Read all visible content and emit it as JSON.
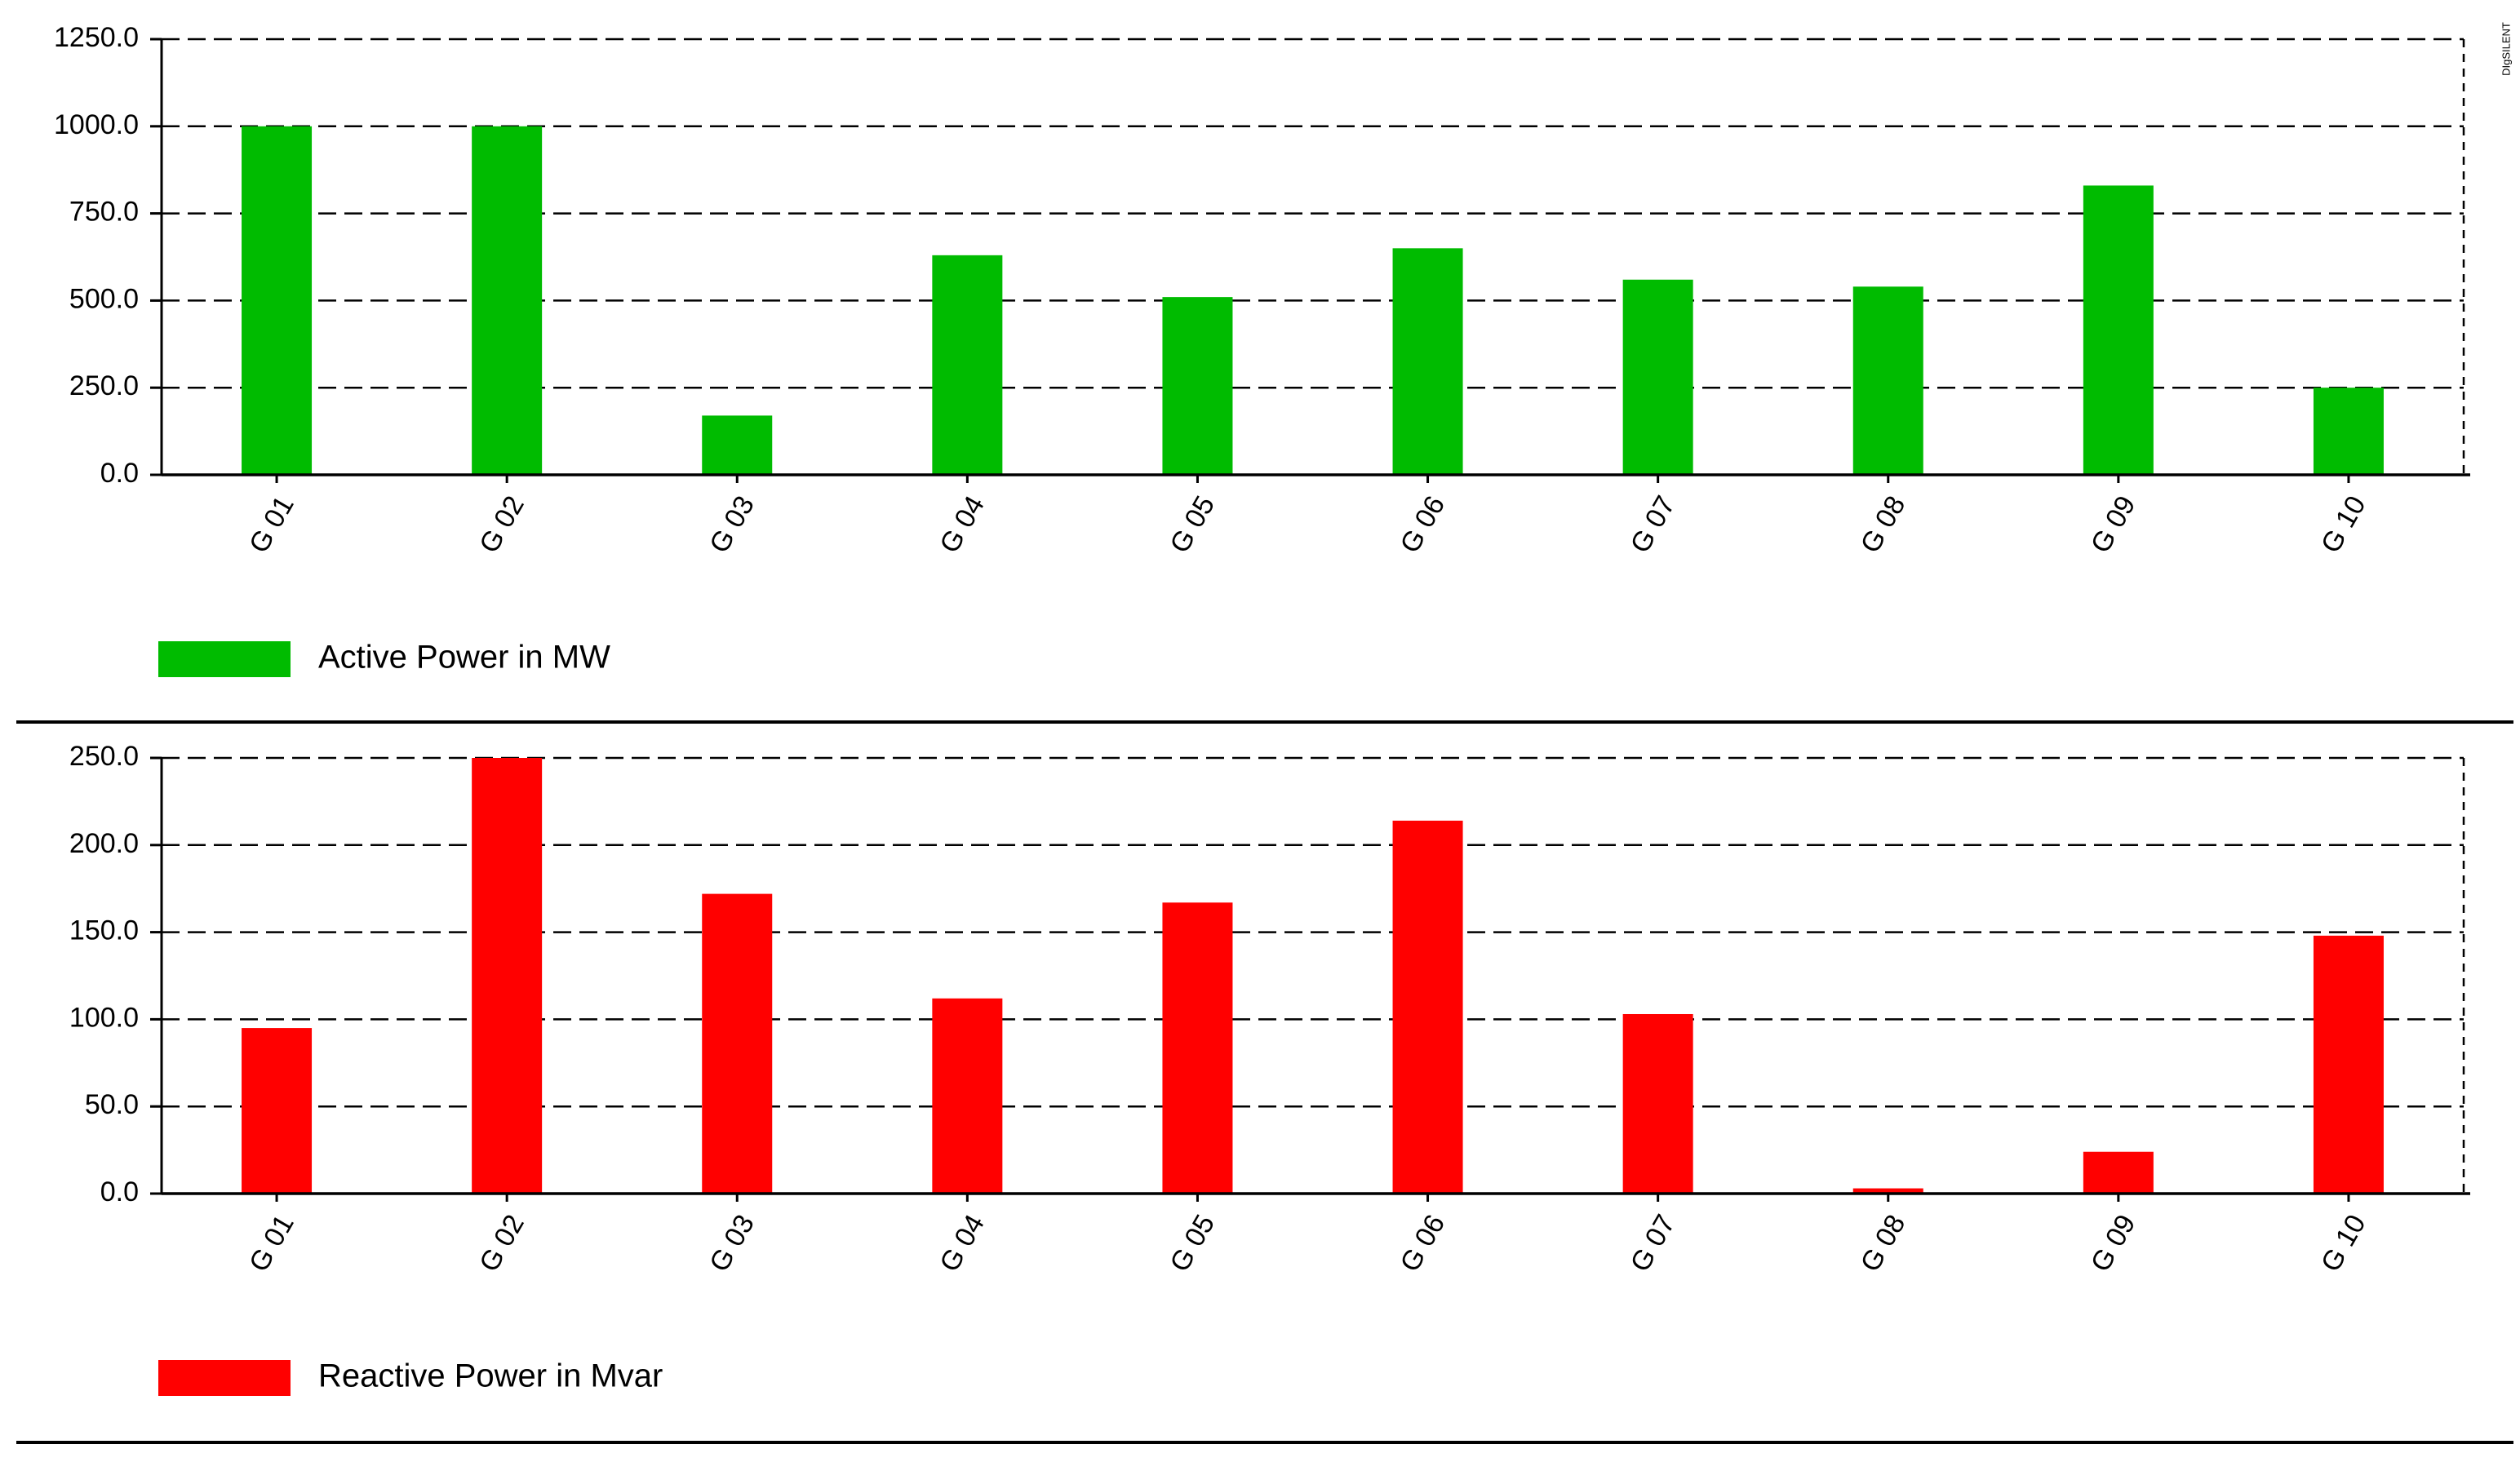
{
  "watermark": "DIgSILENT",
  "chart_data": [
    {
      "type": "bar",
      "categories": [
        "G 01",
        "G 02",
        "G 03",
        "G 04",
        "G 05",
        "G 06",
        "G 07",
        "G 08",
        "G 09",
        "G 10"
      ],
      "series": [
        {
          "name": "Active Power in MW",
          "color": "#00bb00",
          "values": [
            1000,
            1000,
            170,
            630,
            510,
            650,
            560,
            540,
            830,
            250
          ]
        }
      ],
      "ylim": [
        0,
        1250
      ],
      "yticks": [
        {
          "value": 0,
          "label": "0.0"
        },
        {
          "value": 250,
          "label": "250.0"
        },
        {
          "value": 500,
          "label": "500.0"
        },
        {
          "value": 750,
          "label": "750.0"
        },
        {
          "value": 1000,
          "label": "1000.0"
        },
        {
          "value": 1250,
          "label": "1250.0"
        }
      ],
      "grid": true
    },
    {
      "type": "bar",
      "categories": [
        "G 01",
        "G 02",
        "G 03",
        "G 04",
        "G 05",
        "G 06",
        "G 07",
        "G 08",
        "G 09",
        "G 10"
      ],
      "series": [
        {
          "name": "Reactive Power in Mvar",
          "color": "#ff0000",
          "values": [
            95,
            250,
            172,
            112,
            167,
            214,
            103,
            3,
            24,
            148
          ]
        }
      ],
      "ylim": [
        0,
        250
      ],
      "yticks": [
        {
          "value": 0,
          "label": "0.0"
        },
        {
          "value": 50,
          "label": "50.0"
        },
        {
          "value": 100,
          "label": "100.0"
        },
        {
          "value": 150,
          "label": "150.0"
        },
        {
          "value": 200,
          "label": "200.0"
        },
        {
          "value": 250,
          "label": "250.0"
        }
      ],
      "grid": true
    }
  ]
}
